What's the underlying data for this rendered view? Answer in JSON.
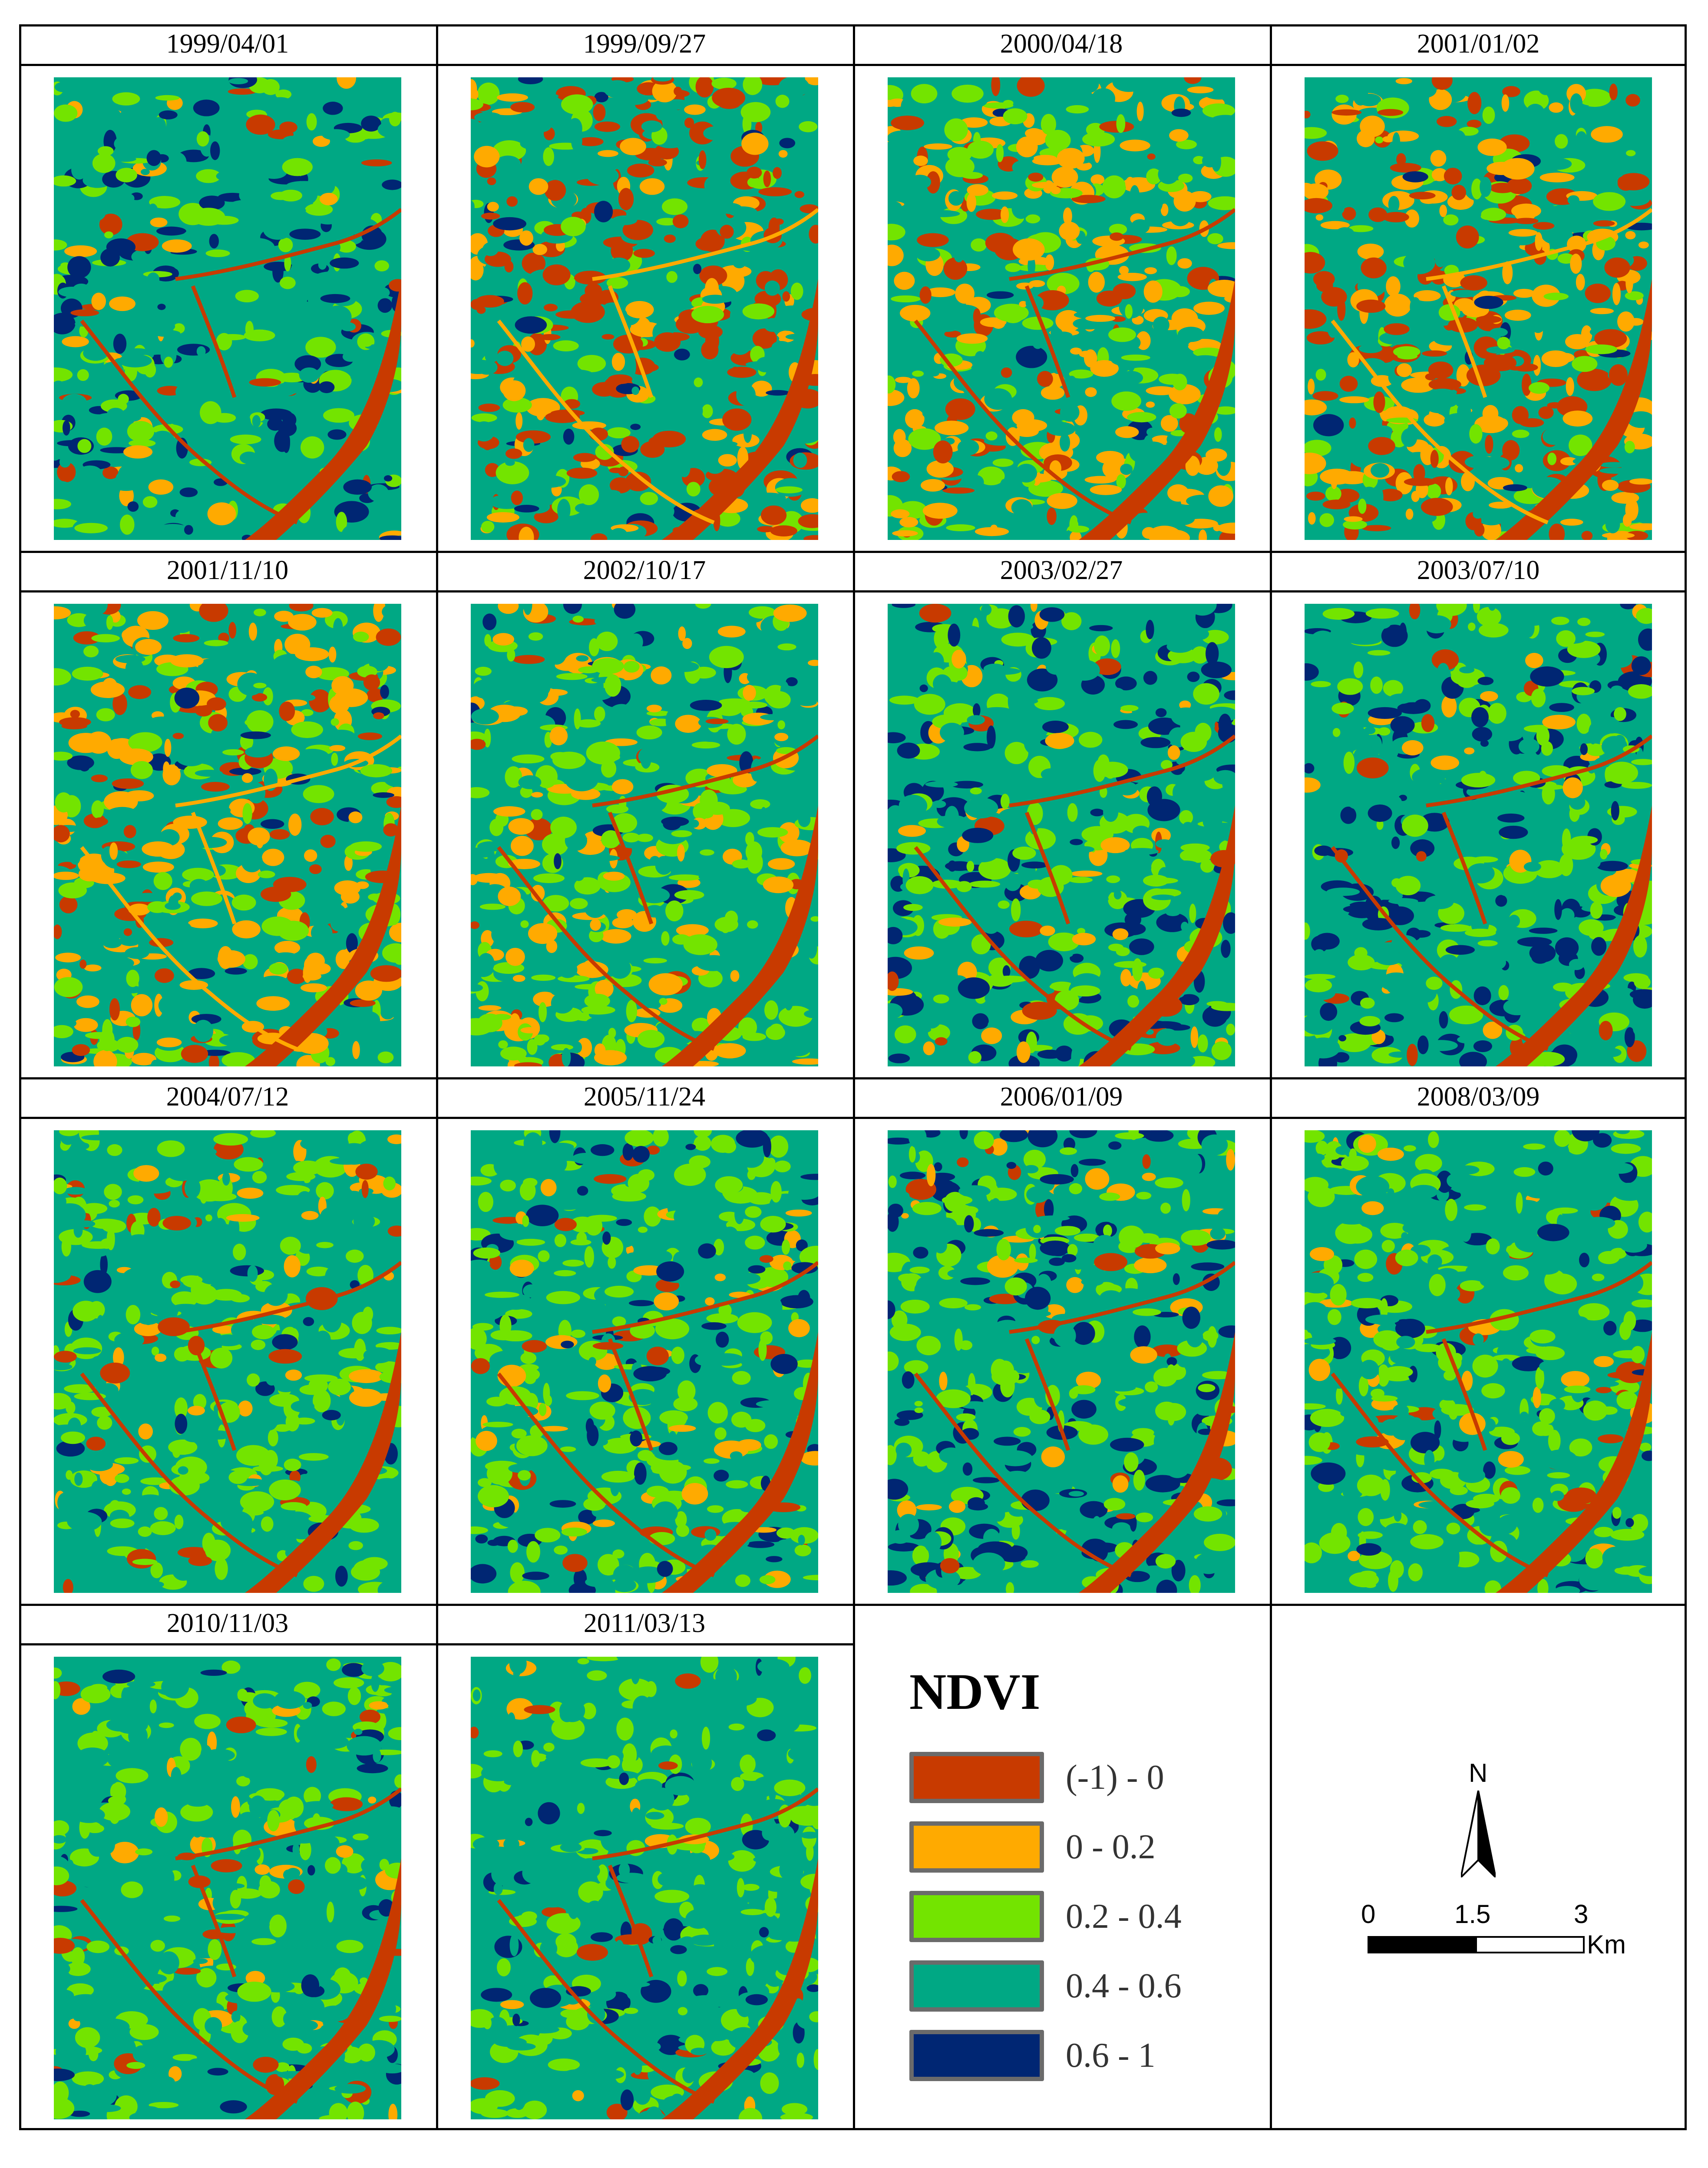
{
  "panels": [
    {
      "date": "1999/04/01",
      "mix": [
        0.02,
        0.05,
        0.22,
        0.5,
        0.21
      ]
    },
    {
      "date": "1999/09/27",
      "mix": [
        0.4,
        0.12,
        0.13,
        0.32,
        0.03
      ]
    },
    {
      "date": "2000/04/18",
      "mix": [
        0.1,
        0.33,
        0.2,
        0.35,
        0.02
      ]
    },
    {
      "date": "2001/01/02",
      "mix": [
        0.26,
        0.3,
        0.14,
        0.28,
        0.02
      ]
    },
    {
      "date": "2001/11/10",
      "mix": [
        0.17,
        0.27,
        0.23,
        0.3,
        0.03
      ]
    },
    {
      "date": "2002/10/17",
      "mix": [
        0.05,
        0.23,
        0.34,
        0.34,
        0.04
      ]
    },
    {
      "date": "2003/02/27",
      "mix": [
        0.03,
        0.08,
        0.29,
        0.4,
        0.2
      ]
    },
    {
      "date": "2003/07/10",
      "mix": [
        0.03,
        0.06,
        0.28,
        0.38,
        0.25
      ]
    },
    {
      "date": "2004/07/12",
      "mix": [
        0.04,
        0.07,
        0.43,
        0.43,
        0.03
      ]
    },
    {
      "date": "2005/11/24",
      "mix": [
        0.04,
        0.08,
        0.38,
        0.38,
        0.12
      ]
    },
    {
      "date": "2006/01/09",
      "mix": [
        0.04,
        0.06,
        0.3,
        0.38,
        0.22
      ]
    },
    {
      "date": "2008/03/09",
      "mix": [
        0.04,
        0.05,
        0.33,
        0.48,
        0.1
      ]
    },
    {
      "date": "2010/11/03",
      "mix": [
        0.04,
        0.05,
        0.33,
        0.52,
        0.06
      ]
    },
    {
      "date": "2011/03/13",
      "mix": [
        0.03,
        0.03,
        0.32,
        0.55,
        0.07
      ]
    }
  ],
  "legend": {
    "title": "NDVI",
    "classes": [
      {
        "label": "(-1) - 0",
        "color": "#c83a00"
      },
      {
        "label": "0 - 0.2",
        "color": "#ffaa00"
      },
      {
        "label": "0.2 - 0.4",
        "color": "#73e400"
      },
      {
        "label": "0.4 - 0.6",
        "color": "#00a884"
      },
      {
        "label": "0.6 - 1",
        "color": "#002673"
      }
    ]
  },
  "north_arrow": {
    "label": "N"
  },
  "scale_bar": {
    "ticks": [
      "0",
      "1.5",
      "3"
    ],
    "unit": "Km"
  }
}
